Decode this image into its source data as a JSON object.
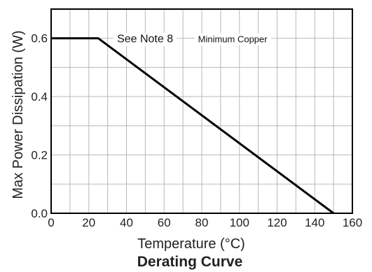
{
  "chart_data": {
    "type": "line",
    "title": "Derating Curve",
    "xlabel": "Temperature (°C)",
    "ylabel": "Max Power Dissipation (W)",
    "xlim": [
      0,
      160
    ],
    "ylim": [
      0,
      0.7
    ],
    "x_ticks": [
      0,
      20,
      40,
      60,
      80,
      100,
      120,
      140,
      160
    ],
    "x_tick_labels": [
      "0",
      "20",
      "40",
      "60",
      "80",
      "100",
      "120",
      "140",
      "160"
    ],
    "y_ticks": [
      0.0,
      0.2,
      0.4,
      0.6
    ],
    "y_tick_labels": [
      "0.0",
      "0.2",
      "0.4",
      "0.6"
    ],
    "grid": true,
    "grid_x_step": 10,
    "grid_y_step": 0.1,
    "series": [
      {
        "x": [
          0,
          25,
          150
        ],
        "y": [
          0.6,
          0.6,
          0.0
        ]
      }
    ],
    "annotations": [
      {
        "text": "See Note 8",
        "x": 35,
        "y": 0.6,
        "size": "normal"
      },
      {
        "text": "Minimum Copper",
        "x": 78,
        "y": 0.6,
        "size": "small"
      }
    ],
    "colors": {
      "line": "#000000",
      "grid": "#b8b8b8",
      "frame": "#000000"
    }
  }
}
